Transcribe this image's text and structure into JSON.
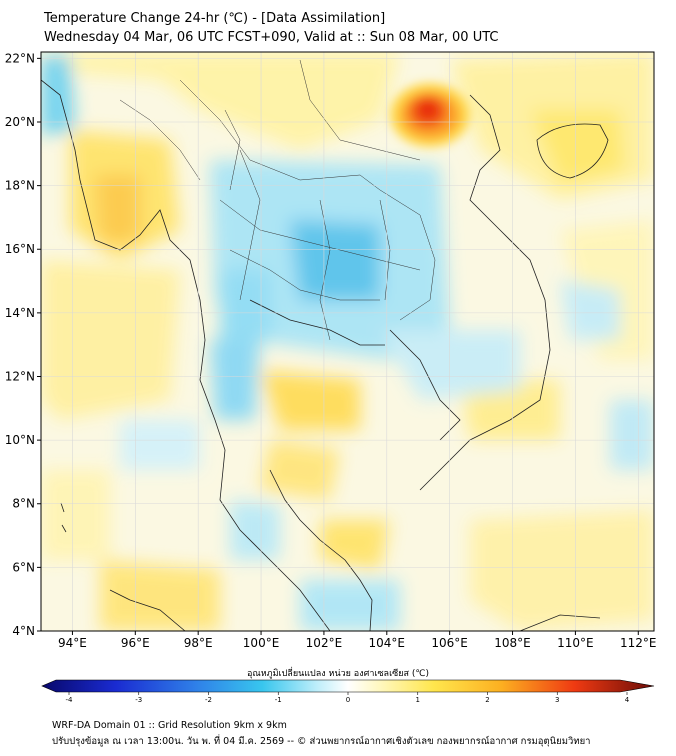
{
  "header": {
    "title": "Temperature Change 24-hr (℃) - [Data Assimilation]",
    "subtitle": "Wednesday 04 Mar, 06 UTC FCST+090, Valid at :: Sun 08 Mar, 00 UTC"
  },
  "map": {
    "lon_range": [
      93,
      112.5
    ],
    "lat_range": [
      4,
      22.2
    ],
    "lat_ticks": [
      "22°N",
      "20°N",
      "18°N",
      "16°N",
      "14°N",
      "12°N",
      "10°N",
      "8°N",
      "6°N",
      "4°N"
    ],
    "lat_values": [
      22,
      20,
      18,
      16,
      14,
      12,
      10,
      8,
      6,
      4
    ],
    "lon_ticks": [
      "94°E",
      "96°E",
      "98°E",
      "100°E",
      "102°E",
      "104°E",
      "106°E",
      "108°E",
      "110°E",
      "112°E"
    ],
    "lon_values": [
      94,
      96,
      98,
      100,
      102,
      104,
      106,
      108,
      110,
      112
    ]
  },
  "colorbar": {
    "title": "อุณหภูมิเปลี่ยนแปลง หน่วย องศาเซลเซียส (℃)",
    "min": -4,
    "max": 4,
    "tick_labels": [
      "-4",
      "-3",
      "-2",
      "-1",
      "0",
      "1",
      "2",
      "3",
      "4"
    ],
    "tick_values": [
      -4,
      -3,
      -2,
      -1,
      0,
      1,
      2,
      3,
      4
    ]
  },
  "footer": {
    "line1": "WRF-DA Domain 01 :: Grid Resolution 9km x 9km",
    "line2": "ปรับปรุงข้อมูล ณ เวลา 13:00น. วัน พ. ที่ 04 มี.ค. 2569 -- © ส่วนพยากรณ์อากาศเชิงตัวเลข กองพยากรณ์อากาศ กรมอุตุนิยมวิทยา"
  }
}
